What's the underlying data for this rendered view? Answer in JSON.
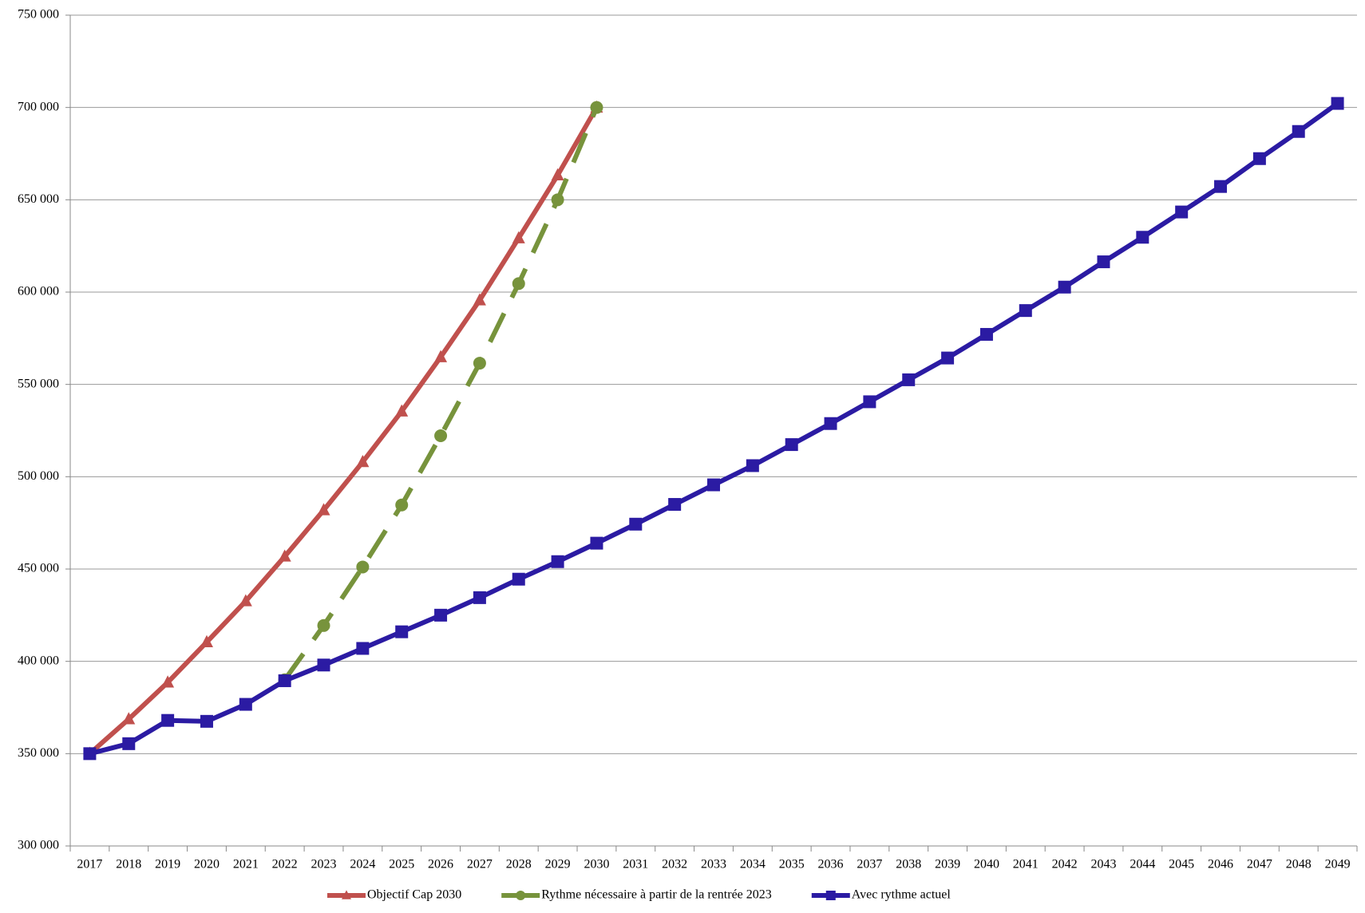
{
  "chart_data": {
    "type": "line",
    "categories": [
      "2017",
      "2018",
      "2019",
      "2020",
      "2021",
      "2022",
      "2023",
      "2024",
      "2025",
      "2026",
      "2027",
      "2028",
      "2029",
      "2030",
      "2031",
      "2032",
      "2033",
      "2034",
      "2035",
      "2036",
      "2037",
      "2038",
      "2039",
      "2040",
      "2041",
      "2042",
      "2043",
      "2044",
      "2045",
      "2046",
      "2047",
      "2048",
      "2049"
    ],
    "series": [
      {
        "name": "Objectif Cap 2030",
        "color": "#c0504d",
        "marker": "triangle",
        "dashed": false,
        "values": [
          350000,
          368700,
          388600,
          410400,
          432600,
          456800,
          481900,
          508000,
          535400,
          564800,
          595600,
          629200,
          663300,
          700000,
          null,
          null,
          null,
          null,
          null,
          null,
          null,
          null,
          null,
          null,
          null,
          null,
          null,
          null,
          null,
          null,
          null,
          null,
          null
        ]
      },
      {
        "name": "Rythme nécessaire à partir de la rentrée 2023",
        "color": "#77933c",
        "marker": "circle",
        "dashed": true,
        "values": [
          null,
          null,
          null,
          null,
          null,
          390000,
          419400,
          451100,
          484700,
          522200,
          561500,
          604600,
          650000,
          700000,
          null,
          null,
          null,
          null,
          null,
          null,
          null,
          null,
          null,
          null,
          null,
          null,
          null,
          null,
          null,
          null,
          null,
          null,
          null
        ]
      },
      {
        "name": "Avec rythme actuel",
        "color": "#2b1ba3",
        "marker": "square",
        "dashed": false,
        "values": [
          350000,
          355400,
          368000,
          367500,
          376700,
          389500,
          398000,
          407000,
          416000,
          425000,
          434500,
          444500,
          454000,
          464000,
          474300,
          485000,
          495600,
          506000,
          517400,
          528800,
          540600,
          552500,
          564300,
          577100,
          590000,
          602700,
          616400,
          629700,
          643400,
          657200,
          672300,
          687000,
          702200
        ]
      }
    ],
    "ylim": [
      300000,
      750000
    ],
    "yticks": [
      {
        "value": 300000,
        "label": "300 000"
      },
      {
        "value": 350000,
        "label": "350 000"
      },
      {
        "value": 400000,
        "label": "400 000"
      },
      {
        "value": 450000,
        "label": "450 000"
      },
      {
        "value": 500000,
        "label": "500 000"
      },
      {
        "value": 550000,
        "label": "550 000"
      },
      {
        "value": 600000,
        "label": "600 000"
      },
      {
        "value": 650000,
        "label": "650 000"
      },
      {
        "value": 700000,
        "label": "700 000"
      },
      {
        "value": 750000,
        "label": "750 000"
      }
    ],
    "grid": true,
    "legend": "bottom"
  }
}
